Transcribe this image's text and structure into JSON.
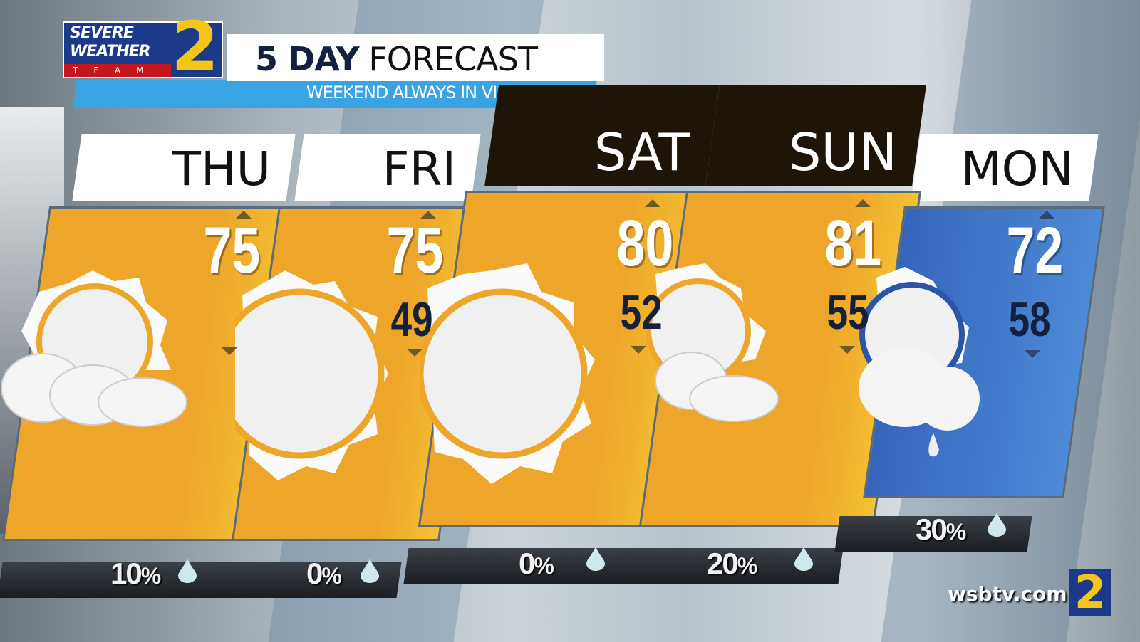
{
  "branding": {
    "logo_text_1": "SEVERE",
    "logo_text_2": "WEATHER",
    "logo_text_3": "TEAM",
    "logo_number": "2",
    "site": "wsbtv.com",
    "footer_logo": "2"
  },
  "header": {
    "title_bold": "5 DAY",
    "title_light": "FORECAST",
    "subtitle": "WEEKEND ALWAYS IN VIEW"
  },
  "colors": {
    "sunny_card": "#f0ac2c",
    "rain_card": "#3d73c8",
    "weekend_header": "#1e1508",
    "weekday_header": "#ffffff",
    "subtitle_bar": "#3aa3e3"
  },
  "days": [
    {
      "day": "THU",
      "high": "75",
      "low": "",
      "precip": "10",
      "precip_unit": "%",
      "icon": "partly-cloudy-icon"
    },
    {
      "day": "FRI",
      "high": "75",
      "low": "49",
      "precip": "0",
      "precip_unit": "%",
      "icon": "sunny-icon"
    },
    {
      "day": "SAT",
      "high": "80",
      "low": "52",
      "precip": "0",
      "precip_unit": "%",
      "icon": "sunny-icon"
    },
    {
      "day": "SUN",
      "high": "81",
      "low": "55",
      "precip": "20",
      "precip_unit": "%",
      "icon": "partly-cloudy-icon"
    },
    {
      "day": "MON",
      "high": "72",
      "low": "58",
      "precip": "30",
      "precip_unit": "%",
      "icon": "partly-cloudy-rain-icon"
    }
  ]
}
